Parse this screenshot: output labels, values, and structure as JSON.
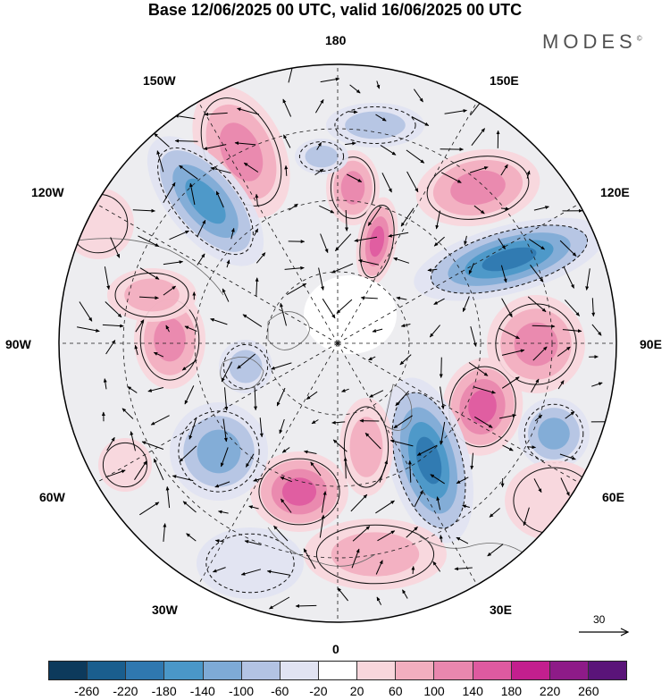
{
  "header": {
    "title": "Base 12/06/2025 00 UTC, valid 16/06/2025 00 UTC",
    "brand": "MODES",
    "brand_mark": "©"
  },
  "map": {
    "projection": "north polar stereographic",
    "longitude_labels": {
      "top": "180",
      "bottom": "0",
      "left": "90W",
      "right": "90E",
      "upper_left_1": "150W",
      "upper_left_2": "120W",
      "lower_left_1": "60W",
      "lower_left_2": "30W",
      "upper_right_1": "150E",
      "upper_right_2": "120E",
      "lower_right_1": "60E",
      "lower_right_2": "30E"
    },
    "reference_vector": {
      "value": "30"
    },
    "colors": {
      "coastline": "#6a6a6a",
      "graticule": "#1a1a1a",
      "contour": "#111111",
      "vector": "#000000"
    }
  },
  "colorbar": {
    "tick_labels": [
      "-260",
      "-220",
      "-180",
      "-140",
      "-100",
      "-60",
      "-20",
      "20",
      "60",
      "100",
      "140",
      "180",
      "220",
      "260"
    ],
    "colors": [
      "#0d3a5c",
      "#1a5e8e",
      "#2f78b0",
      "#4a97c8",
      "#7eaad6",
      "#b3c3e3",
      "#e1e3f2",
      "#ffffff",
      "#f8d6dc",
      "#f2aebf",
      "#e987ae",
      "#de5aa0",
      "#c31f8e",
      "#8e1b88",
      "#5a1479"
    ]
  }
}
